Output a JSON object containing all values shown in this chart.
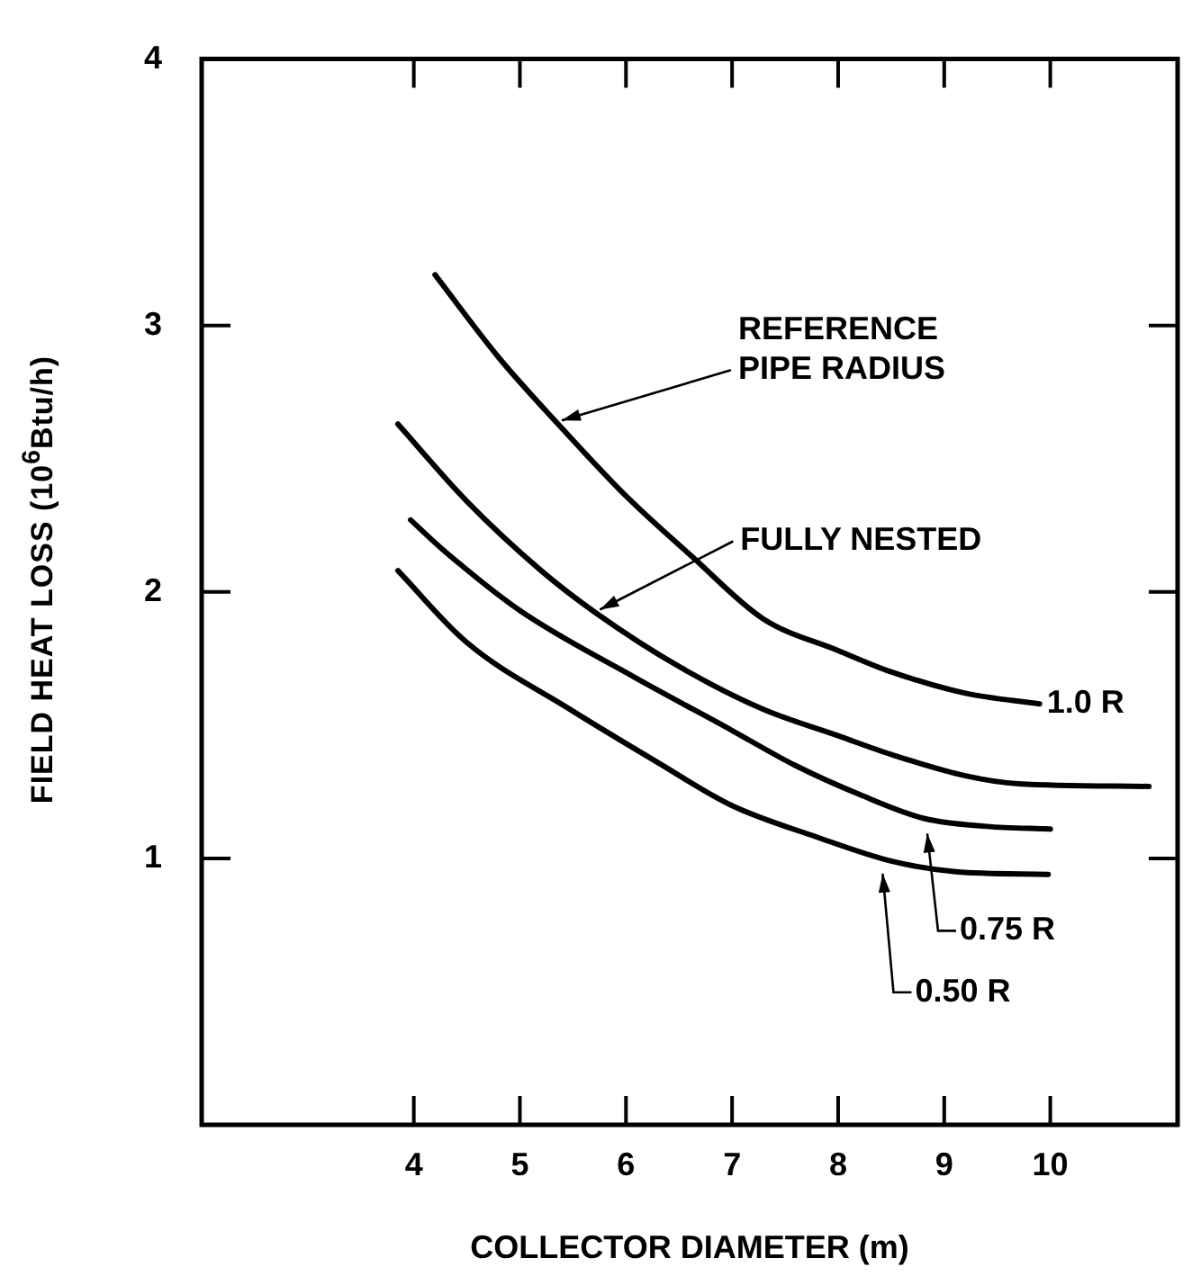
{
  "chart_data": {
    "type": "line",
    "xlabel": "COLLECTOR DIAMETER (m)",
    "ylabel": "FIELD HEAT LOSS (10$^{6}$Btu/h)",
    "xlim": [
      2,
      11.2
    ],
    "xticks": [
      4,
      5,
      6,
      7,
      8,
      9,
      10
    ],
    "ylim": [
      0,
      4
    ],
    "yticks": [
      1,
      2,
      3,
      4
    ],
    "grid": false,
    "legend": false,
    "marker": "none",
    "line_style": "solid",
    "series": [
      {
        "color": "#000000",
        "x": [
          4.2,
          4.8,
          5.36,
          6,
          6.63,
          7.29,
          8,
          8.5,
          9.2,
          9.9
        ],
        "values": [
          3.19,
          2.88,
          2.63,
          2.36,
          2.13,
          1.9,
          1.78,
          1.7,
          1.62,
          1.58
        ]
      },
      {
        "color": "#000000",
        "x": [
          3.85,
          4.5,
          5.2,
          5.72,
          6.5,
          7.29,
          8,
          8.5,
          9.2,
          9.7,
          10.93
        ],
        "values": [
          2.63,
          2.34,
          2.08,
          1.92,
          1.72,
          1.56,
          1.46,
          1.39,
          1.31,
          1.28,
          1.27
        ]
      },
      {
        "color": "#000000",
        "x": [
          3.97,
          4.27,
          5,
          6.08,
          7,
          7.59,
          8.2,
          8.81,
          9.4,
          10
        ],
        "values": [
          2.27,
          2.16,
          1.93,
          1.68,
          1.48,
          1.35,
          1.24,
          1.15,
          1.12,
          1.11
        ]
      },
      {
        "color": "#000000",
        "x": [
          3.85,
          4.5,
          5.47,
          6.3,
          6.99,
          7.8,
          8.5,
          9.11,
          9.98
        ],
        "values": [
          2.08,
          1.81,
          1.56,
          1.36,
          1.2,
          1.08,
          0.99,
          0.95,
          0.94
        ]
      }
    ],
    "annotations": [
      {
        "text": "REFERENCE\nPIPE RADIUS",
        "x": 5.36,
        "y": 2.63
      },
      {
        "text": "FULLY NESTED",
        "x": 5.72,
        "y": 1.92
      },
      {
        "text": "1.0 R",
        "x": 9.9,
        "y": 1.58
      },
      {
        "text": "0.75 R",
        "x": 8.84,
        "y": 1.12
      },
      {
        "text": "0.50 R",
        "x": 8.42,
        "y": 0.97
      }
    ]
  }
}
